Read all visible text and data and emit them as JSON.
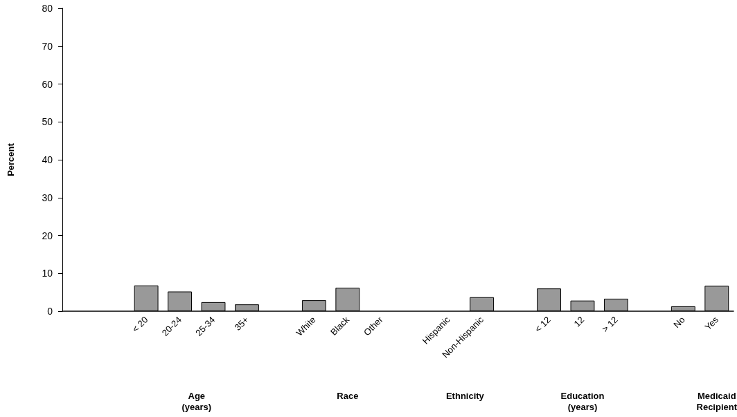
{
  "chart_data": {
    "type": "bar",
    "ylabel": "Percent",
    "categories": [
      null,
      null,
      "< 20",
      "20-24",
      "25-34",
      "35+",
      null,
      "White",
      "Black",
      "Other",
      null,
      "Hispanic",
      "Non-Hispanic",
      null,
      "< 12",
      "12",
      "> 12",
      null,
      "No",
      "Yes"
    ],
    "values": [
      null,
      null,
      6.8,
      5.2,
      2.4,
      1.8,
      null,
      2.9,
      6.2,
      null,
      null,
      null,
      3.7,
      null,
      6.0,
      2.8,
      3.3,
      null,
      1.3,
      6.7
    ],
    "color": "#999999",
    "ylim": [
      0,
      80
    ],
    "yticks": [
      0,
      10,
      20,
      30,
      40,
      50,
      60,
      70,
      80
    ],
    "grid": false,
    "annotations": [
      "Age\n(years)",
      "Race",
      "Ethnicity",
      "Education\n(years)",
      "Medicaid\nRecipient"
    ]
  }
}
